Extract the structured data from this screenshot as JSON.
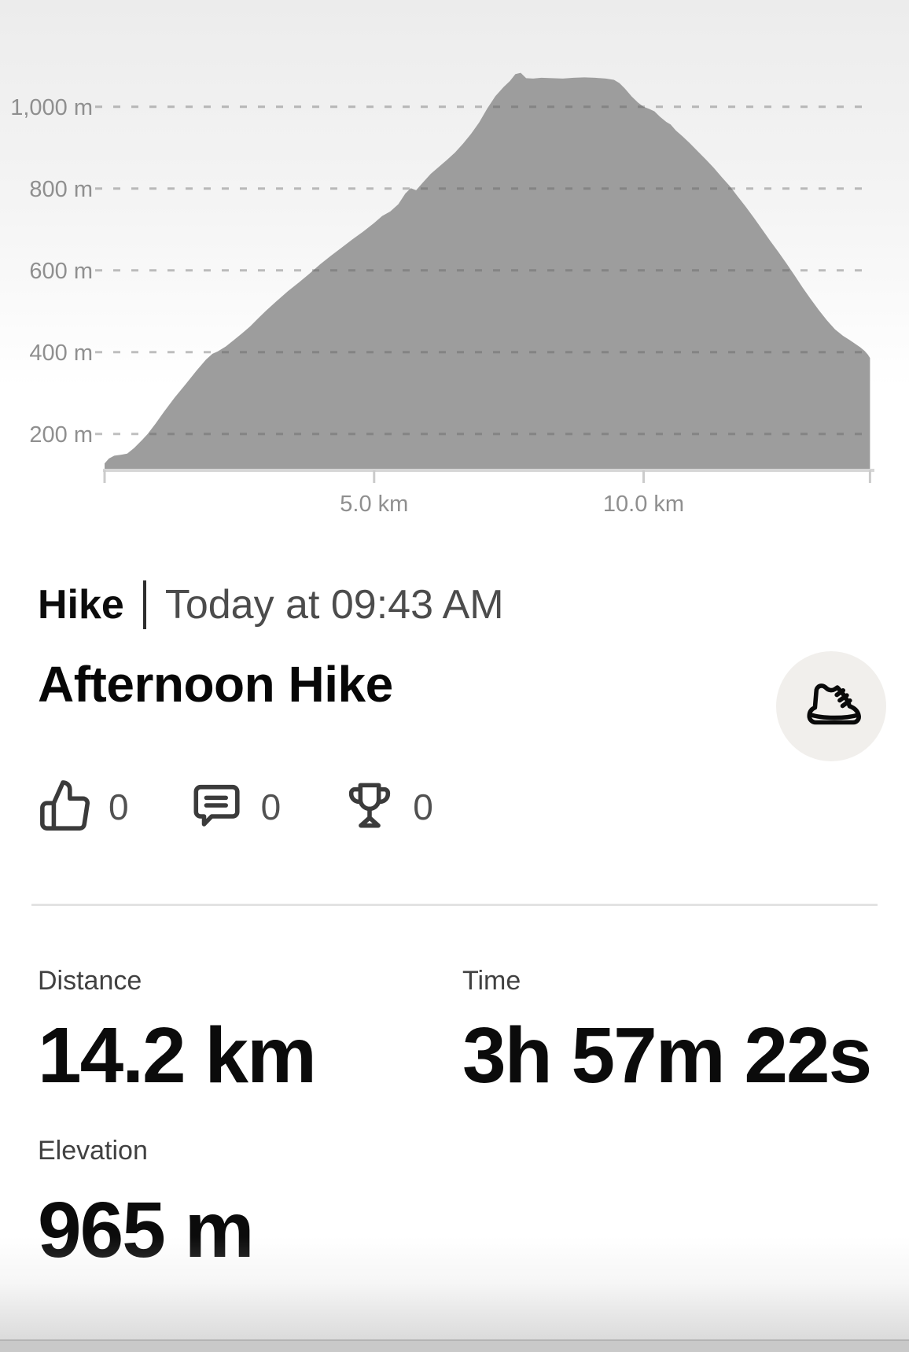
{
  "chart_data": {
    "type": "area",
    "title": "Elevation profile",
    "series_name": "Elevation",
    "x_unit": "km",
    "y_unit": "m",
    "x_range": [
      0,
      14.2
    ],
    "grid": "dashed-horizontal",
    "legend": "none",
    "area_color": "#9d9d9d",
    "y_axis_ticks": [
      {
        "value": 1000,
        "label": "1,000 m"
      },
      {
        "value": 800,
        "label": "800 m"
      },
      {
        "value": 600,
        "label": "600 m"
      },
      {
        "value": 400,
        "label": "400 m"
      },
      {
        "value": 200,
        "label": "200 m"
      }
    ],
    "x_axis_ticks": [
      {
        "value": 0,
        "label": ""
      },
      {
        "value": 5,
        "label": "5.0 km"
      },
      {
        "value": 10,
        "label": "10.0 km"
      },
      {
        "value": 14.2,
        "label": ""
      }
    ],
    "profile": [
      [
        0,
        128
      ],
      [
        0.08,
        140
      ],
      [
        0.18,
        147
      ],
      [
        0.3,
        149
      ],
      [
        0.42,
        152
      ],
      [
        0.55,
        166
      ],
      [
        0.7,
        186
      ],
      [
        0.8,
        200
      ],
      [
        0.95,
        226
      ],
      [
        1.1,
        254
      ],
      [
        1.3,
        289
      ],
      [
        1.5,
        321
      ],
      [
        1.7,
        354
      ],
      [
        1.88,
        382
      ],
      [
        2.0,
        396
      ],
      [
        2.1,
        402
      ],
      [
        2.25,
        414
      ],
      [
        2.4,
        430
      ],
      [
        2.55,
        446
      ],
      [
        2.7,
        463
      ],
      [
        2.85,
        483
      ],
      [
        3.0,
        502
      ],
      [
        3.2,
        526
      ],
      [
        3.4,
        549
      ],
      [
        3.6,
        570
      ],
      [
        3.8,
        592
      ],
      [
        4.0,
        615
      ],
      [
        4.2,
        636
      ],
      [
        4.4,
        656
      ],
      [
        4.6,
        676
      ],
      [
        4.8,
        695
      ],
      [
        5.0,
        716
      ],
      [
        5.15,
        733
      ],
      [
        5.3,
        744
      ],
      [
        5.45,
        762
      ],
      [
        5.58,
        788
      ],
      [
        5.68,
        801
      ],
      [
        5.78,
        796
      ],
      [
        5.9,
        814
      ],
      [
        6.05,
        836
      ],
      [
        6.2,
        853
      ],
      [
        6.35,
        870
      ],
      [
        6.5,
        888
      ],
      [
        6.65,
        910
      ],
      [
        6.8,
        934
      ],
      [
        6.95,
        962
      ],
      [
        7.1,
        996
      ],
      [
        7.25,
        1026
      ],
      [
        7.4,
        1048
      ],
      [
        7.52,
        1063
      ],
      [
        7.62,
        1080
      ],
      [
        7.72,
        1083
      ],
      [
        7.82,
        1070
      ],
      [
        7.95,
        1069
      ],
      [
        8.1,
        1071
      ],
      [
        8.3,
        1070
      ],
      [
        8.5,
        1069
      ],
      [
        8.7,
        1071
      ],
      [
        8.9,
        1072
      ],
      [
        9.1,
        1071
      ],
      [
        9.3,
        1069
      ],
      [
        9.45,
        1066
      ],
      [
        9.55,
        1058
      ],
      [
        9.65,
        1045
      ],
      [
        9.78,
        1025
      ],
      [
        9.9,
        1010
      ],
      [
        10.0,
        1000
      ],
      [
        10.1,
        995
      ],
      [
        10.2,
        989
      ],
      [
        10.3,
        976
      ],
      [
        10.42,
        963
      ],
      [
        10.5,
        957
      ],
      [
        10.6,
        942
      ],
      [
        10.72,
        928
      ],
      [
        10.85,
        912
      ],
      [
        11.0,
        892
      ],
      [
        11.15,
        872
      ],
      [
        11.3,
        851
      ],
      [
        11.45,
        828
      ],
      [
        11.6,
        806
      ],
      [
        11.75,
        780
      ],
      [
        11.9,
        755
      ],
      [
        12.05,
        728
      ],
      [
        12.2,
        700
      ],
      [
        12.35,
        672
      ],
      [
        12.5,
        645
      ],
      [
        12.65,
        617
      ],
      [
        12.8,
        588
      ],
      [
        12.95,
        558
      ],
      [
        13.1,
        530
      ],
      [
        13.25,
        503
      ],
      [
        13.4,
        478
      ],
      [
        13.55,
        456
      ],
      [
        13.7,
        440
      ],
      [
        13.82,
        430
      ],
      [
        13.92,
        421
      ],
      [
        14.02,
        412
      ],
      [
        14.1,
        403
      ],
      [
        14.16,
        394
      ],
      [
        14.2,
        386
      ]
    ]
  },
  "header": {
    "activity_type": "Hike",
    "timestamp": "Today at 09:43 AM",
    "title": "Afternoon Hike",
    "activity_icon": "hiking-boot-icon"
  },
  "social": {
    "items": [
      {
        "name": "kudos",
        "icon": "thumbs-up-icon",
        "count": "0"
      },
      {
        "name": "comments",
        "icon": "comment-icon",
        "count": "0"
      },
      {
        "name": "achievements",
        "icon": "trophy-icon",
        "count": "0"
      }
    ]
  },
  "stats": {
    "distance": {
      "label": "Distance",
      "value": "14.2 km"
    },
    "time": {
      "label": "Time",
      "value": "3h 57m 22s"
    },
    "elevation": {
      "label": "Elevation",
      "value": "965 m"
    }
  },
  "colors": {
    "area_fill": "#9d9d9d",
    "axis_text": "#8f8f8f",
    "chart_background_top": "#ececec",
    "title_text": "#070707",
    "secondary_text": "#4c4c4c",
    "divider": "#e3e3e3",
    "icon_stroke": "#3b3b3b",
    "type_button_background": "#f1efec"
  }
}
